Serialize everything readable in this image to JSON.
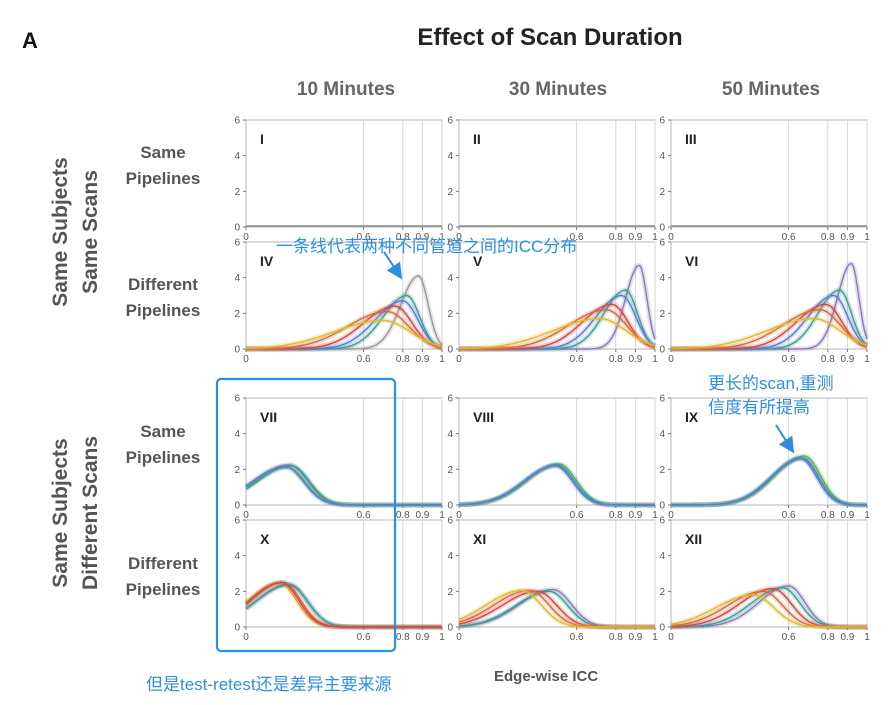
{
  "figure_label": "A",
  "title": "Effect of Scan Duration",
  "column_titles": [
    "10 Minutes",
    "30 Minutes",
    "50 Minutes"
  ],
  "row_titles": [
    [
      "Same",
      "Pipelines"
    ],
    [
      "Different",
      "Pipelines"
    ],
    [
      "Same",
      "Pipelines"
    ],
    [
      "Different",
      "Pipelines"
    ]
  ],
  "group_labels": [
    [
      "Same Subjects",
      "Same Scans"
    ],
    [
      "Same Subjects",
      "Different Scans"
    ]
  ],
  "xlabel": "Edge-wise ICC",
  "annotations": {
    "curve_note": "一条线代表两种不同管道之间的ICC分布",
    "longer_scan_note": [
      "更长的scan,重测",
      "信度有所提高"
    ],
    "bottom_note": "但是test-retest还是差异主要来源"
  },
  "colors": {
    "annotation": "#2e8fe0",
    "series": [
      "#8b7bb8",
      "#3a9f95",
      "#5ab55a",
      "#e0b830",
      "#d66a3a",
      "#d04848",
      "#5a7ed0",
      "#9a9a9a"
    ]
  },
  "chart_data": {
    "type": "line",
    "layout": "4x3 small multiples of density curves",
    "xlim": [
      0,
      1
    ],
    "ylim": [
      0,
      6
    ],
    "x_ticks": [
      "0",
      "0.6",
      "0.8",
      "0.9",
      "1"
    ],
    "x_tick_values": [
      0,
      0.6,
      0.8,
      0.9,
      1
    ],
    "y_ticks": [
      "0",
      "2",
      "4",
      "6"
    ],
    "y_tick_values": [
      0,
      2,
      4,
      6
    ],
    "vertical_reference_lines": [
      0.6,
      0.8,
      0.9,
      1
    ],
    "grid": "vertical reference lines only",
    "panels": [
      {
        "label": "I",
        "row": 0,
        "col": 0,
        "curves": []
      },
      {
        "label": "II",
        "row": 0,
        "col": 1,
        "curves": []
      },
      {
        "label": "III",
        "row": 0,
        "col": 2,
        "curves": []
      },
      {
        "label": "IV",
        "row": 1,
        "col": 0,
        "curves": [
          {
            "color": "#9a9a9a",
            "peak_x": 0.88,
            "peak_y": 4.1,
            "sd": 0.09
          },
          {
            "color": "#3a9f95",
            "peak_x": 0.82,
            "peak_y": 3.0,
            "sd": 0.12
          },
          {
            "color": "#5a7ed0",
            "peak_x": 0.8,
            "peak_y": 2.7,
            "sd": 0.14
          },
          {
            "color": "#d04848",
            "peak_x": 0.76,
            "peak_y": 2.4,
            "sd": 0.16
          },
          {
            "color": "#d66a3a",
            "peak_x": 0.72,
            "peak_y": 2.1,
            "sd": 0.2
          },
          {
            "color": "#e0b830",
            "peak_x": 0.7,
            "peak_y": 1.6,
            "sd": 0.25
          }
        ]
      },
      {
        "label": "V",
        "row": 1,
        "col": 1,
        "curves": [
          {
            "color": "#8b7bb8",
            "peak_x": 0.92,
            "peak_y": 4.7,
            "sd": 0.07
          },
          {
            "color": "#3a9f95",
            "peak_x": 0.85,
            "peak_y": 3.3,
            "sd": 0.11
          },
          {
            "color": "#5a7ed0",
            "peak_x": 0.83,
            "peak_y": 3.0,
            "sd": 0.13
          },
          {
            "color": "#d04848",
            "peak_x": 0.78,
            "peak_y": 2.5,
            "sd": 0.15
          },
          {
            "color": "#d66a3a",
            "peak_x": 0.75,
            "peak_y": 2.2,
            "sd": 0.19
          },
          {
            "color": "#e0b830",
            "peak_x": 0.72,
            "peak_y": 1.7,
            "sd": 0.24
          }
        ]
      },
      {
        "label": "VI",
        "row": 1,
        "col": 2,
        "curves": [
          {
            "color": "#8b7bb8",
            "peak_x": 0.92,
            "peak_y": 4.8,
            "sd": 0.07
          },
          {
            "color": "#3a9f95",
            "peak_x": 0.86,
            "peak_y": 3.3,
            "sd": 0.11
          },
          {
            "color": "#5a7ed0",
            "peak_x": 0.83,
            "peak_y": 3.0,
            "sd": 0.13
          },
          {
            "color": "#d04848",
            "peak_x": 0.79,
            "peak_y": 2.5,
            "sd": 0.15
          },
          {
            "color": "#d66a3a",
            "peak_x": 0.76,
            "peak_y": 2.2,
            "sd": 0.19
          },
          {
            "color": "#e0b830",
            "peak_x": 0.73,
            "peak_y": 1.7,
            "sd": 0.24
          }
        ]
      },
      {
        "label": "VII",
        "row": 2,
        "col": 0,
        "curves": [
          {
            "color": "#8b7bb8",
            "peak_x": 0.22,
            "peak_y": 2.25,
            "sd": 0.17
          },
          {
            "color": "#5ab55a",
            "peak_x": 0.21,
            "peak_y": 2.1,
            "sd": 0.17
          },
          {
            "color": "#3a9f95",
            "peak_x": 0.23,
            "peak_y": 2.2,
            "sd": 0.17
          },
          {
            "color": "#5a7ed0",
            "peak_x": 0.2,
            "peak_y": 2.15,
            "sd": 0.17
          }
        ]
      },
      {
        "label": "VIII",
        "row": 2,
        "col": 1,
        "curves": [
          {
            "color": "#8b7bb8",
            "peak_x": 0.5,
            "peak_y": 2.2,
            "sd": 0.16
          },
          {
            "color": "#5ab55a",
            "peak_x": 0.51,
            "peak_y": 2.3,
            "sd": 0.16
          },
          {
            "color": "#3a9f95",
            "peak_x": 0.5,
            "peak_y": 2.25,
            "sd": 0.16
          },
          {
            "color": "#5a7ed0",
            "peak_x": 0.49,
            "peak_y": 2.2,
            "sd": 0.16
          }
        ]
      },
      {
        "label": "IX",
        "row": 2,
        "col": 2,
        "curves": [
          {
            "color": "#8b7bb8",
            "peak_x": 0.67,
            "peak_y": 2.6,
            "sd": 0.15
          },
          {
            "color": "#5ab55a",
            "peak_x": 0.68,
            "peak_y": 2.75,
            "sd": 0.15
          },
          {
            "color": "#3a9f95",
            "peak_x": 0.67,
            "peak_y": 2.65,
            "sd": 0.15
          },
          {
            "color": "#5a7ed0",
            "peak_x": 0.66,
            "peak_y": 2.6,
            "sd": 0.15
          }
        ]
      },
      {
        "label": "X",
        "row": 3,
        "col": 0,
        "curves": [
          {
            "color": "#8b7bb8",
            "peak_x": 0.22,
            "peak_y": 2.35,
            "sd": 0.17
          },
          {
            "color": "#e0b830",
            "peak_x": 0.17,
            "peak_y": 2.45,
            "sd": 0.16
          },
          {
            "color": "#d66a3a",
            "peak_x": 0.19,
            "peak_y": 2.5,
            "sd": 0.16
          },
          {
            "color": "#3a9f95",
            "peak_x": 0.22,
            "peak_y": 2.4,
            "sd": 0.17
          },
          {
            "color": "#d04848",
            "peak_x": 0.18,
            "peak_y": 2.5,
            "sd": 0.16
          }
        ]
      },
      {
        "label": "XI",
        "row": 3,
        "col": 1,
        "curves": [
          {
            "color": "#8b7bb8",
            "peak_x": 0.48,
            "peak_y": 2.1,
            "sd": 0.17
          },
          {
            "color": "#3a9f95",
            "peak_x": 0.46,
            "peak_y": 2.0,
            "sd": 0.17
          },
          {
            "color": "#d04848",
            "peak_x": 0.4,
            "peak_y": 2.0,
            "sd": 0.18
          },
          {
            "color": "#d66a3a",
            "peak_x": 0.36,
            "peak_y": 2.05,
            "sd": 0.18
          },
          {
            "color": "#e0b830",
            "peak_x": 0.32,
            "peak_y": 2.05,
            "sd": 0.18
          }
        ]
      },
      {
        "label": "XII",
        "row": 3,
        "col": 2,
        "curves": [
          {
            "color": "#8b7bb8",
            "peak_x": 0.6,
            "peak_y": 2.3,
            "sd": 0.15
          },
          {
            "color": "#3a9f95",
            "peak_x": 0.57,
            "peak_y": 2.2,
            "sd": 0.16
          },
          {
            "color": "#d04848",
            "peak_x": 0.52,
            "peak_y": 2.15,
            "sd": 0.17
          },
          {
            "color": "#d66a3a",
            "peak_x": 0.47,
            "peak_y": 2.0,
            "sd": 0.18
          },
          {
            "color": "#e0b830",
            "peak_x": 0.42,
            "peak_y": 1.8,
            "sd": 0.19
          }
        ]
      }
    ]
  }
}
